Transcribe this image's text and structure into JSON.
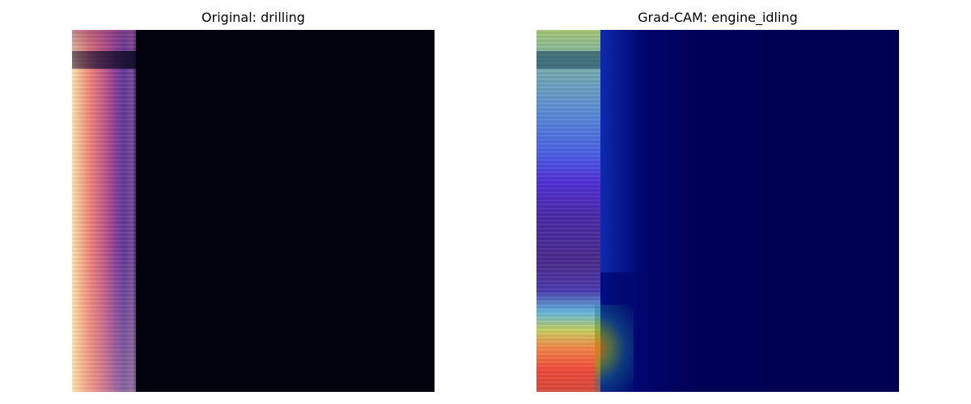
{
  "panels": [
    {
      "title": "Original: drilling"
    },
    {
      "title": "Grad-CAM: engine_idling"
    }
  ],
  "colors": {
    "background": "#ffffff",
    "spectrogram_dark": "#02030f",
    "cam_dark": "#000050"
  }
}
